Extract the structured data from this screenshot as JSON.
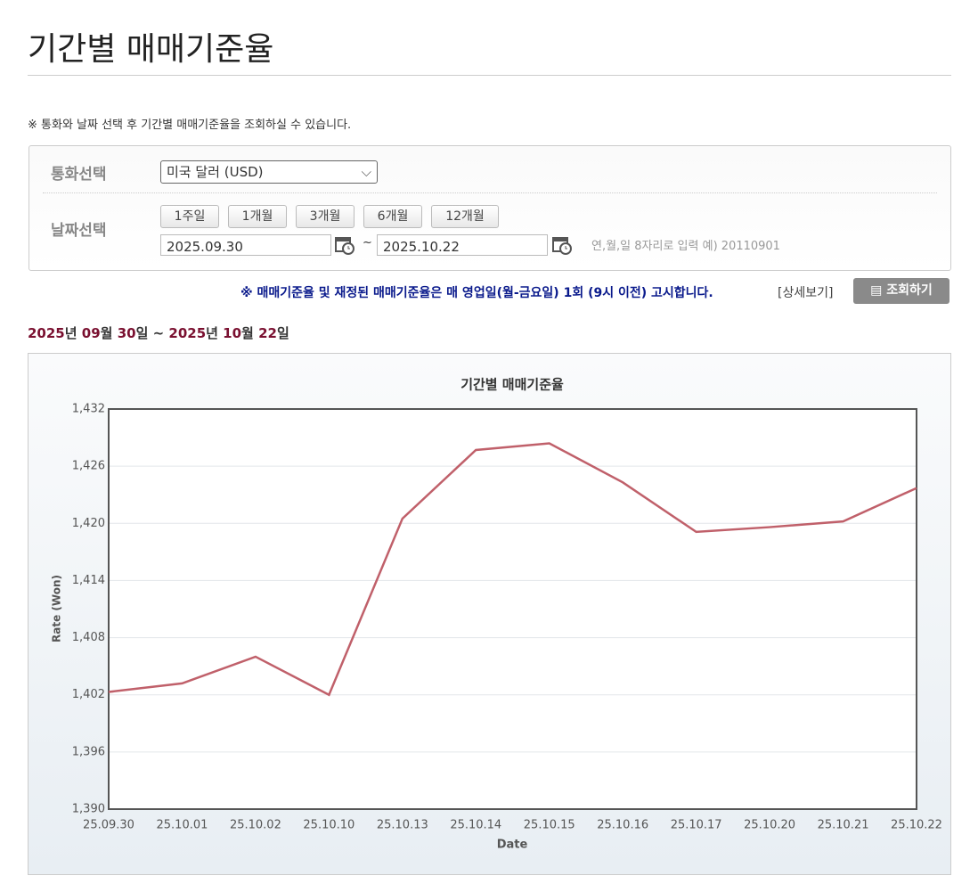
{
  "page": {
    "title": "기간별 매매기준율",
    "notice": "※ 통화와 날짜 선택 후 기간별 매매기준율을 조회하실 수 있습니다.",
    "form": {
      "currency_label": "통화선택",
      "currency": "미국 달러 (USD)",
      "date_label": "날짜선택",
      "periods": [
        "1주일",
        "1개월",
        "3개월",
        "6개월",
        "12개월"
      ],
      "start": "2025.09.30",
      "tilde": "~",
      "end": "2025.10.22",
      "hint": "연,월,일 8자리로 입력 예) 20110901"
    },
    "notice2": "※ 매매기준율 및 재정된 매매기준율은 매 영업일(월-금요일) 1회 (9시 이전) 고시합니다.",
    "detail_link": "[상세보기]",
    "search_button": "조회하기",
    "range": [
      "2025",
      "년 ",
      "09",
      "월 ",
      "30",
      "일 ~ ",
      "2025",
      "년 ",
      "10",
      "월 ",
      "22",
      "일"
    ]
  },
  "chart_data": {
    "type": "line",
    "title": "기간별 매매기준율",
    "y_label": "Rate (Won)",
    "x_label": "Date",
    "categories": [
      "25.09.30",
      "25.10.01",
      "25.10.02",
      "25.10.10",
      "25.10.13",
      "25.10.14",
      "25.10.15",
      "25.10.16",
      "25.10.17",
      "25.10.20",
      "25.10.21",
      "25.10.22"
    ],
    "series": [
      {
        "color": "#c0606a",
        "values": [
          1402.3,
          1403.2,
          1406.0,
          1402.0,
          1420.5,
          1427.7,
          1428.4,
          1424.3,
          1419.1,
          1419.6,
          1420.2,
          1423.7
        ]
      }
    ],
    "ylim": [
      1390,
      1432
    ],
    "yticks": [
      {
        "value": 1390,
        "label": "1,390"
      },
      {
        "value": 1396,
        "label": "1,396"
      },
      {
        "value": 1402,
        "label": "1,402"
      },
      {
        "value": 1408,
        "label": "1,408"
      },
      {
        "value": 1414,
        "label": "1,414"
      },
      {
        "value": 1420,
        "label": "1,420"
      },
      {
        "value": 1426,
        "label": "1,426"
      },
      {
        "value": 1432,
        "label": "1,432"
      }
    ],
    "grid": true
  }
}
